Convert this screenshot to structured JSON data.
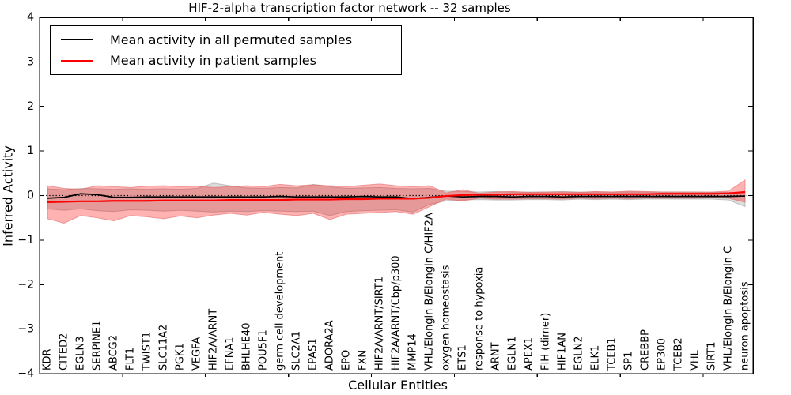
{
  "chart_data": {
    "type": "line",
    "title": "HIF-2-alpha transcription factor network -- 32 samples",
    "xlabel": "Cellular Entities",
    "ylabel": "Inferred Activity",
    "ylim": [
      -4,
      4
    ],
    "yticks": [
      4,
      3,
      2,
      1,
      0,
      -1,
      -2,
      -3,
      -4
    ],
    "x_major_ticks": [
      5,
      10,
      15,
      20,
      25,
      30,
      35,
      40
    ],
    "grid": false,
    "zero_line": "dotted",
    "legend_position": "upper left",
    "categories": [
      "KDR",
      "CITED2",
      "EGLN3",
      "SERPINE1",
      "ABCG2",
      "FLT1",
      "TWIST1",
      "SLC11A2",
      "PGK1",
      "VEGFA",
      "HIF2A/ARNT",
      "EFNA1",
      "BHLHE40",
      "POU5F1",
      "germ cell development",
      "SLC2A1",
      "EPAS1",
      "ADORA2A",
      "EPO",
      "FXN",
      "HIF2A/ARNT/SIRT1",
      "HIF2A/ARNT/Cbp/p300",
      "MMP14",
      "VHL/Elongin B/Elongin C/HIF2A",
      "oxygen homeostasis",
      "ETS1",
      "response to hypoxia",
      "ARNT",
      "EGLN1",
      "APEX1",
      "FIH (dimer)",
      "HIF1AN",
      "EGLN2",
      "ELK1",
      "TCEB1",
      "SP1",
      "CREBBP",
      "EP300",
      "TCEB2",
      "VHL",
      "SIRT1",
      "VHL/Elongin B/Elongin C",
      "neuron apoptosis"
    ],
    "series": [
      {
        "id": "permuted",
        "name": "Mean activity in all permuted samples",
        "color": "#000000",
        "line_width": 1.7,
        "band_color": "#808080",
        "band_opacity": 0.28,
        "band_edge": "#9a9a9a",
        "values": [
          -0.06,
          -0.04,
          0.04,
          0.02,
          -0.04,
          -0.04,
          -0.03,
          -0.03,
          -0.03,
          -0.03,
          -0.03,
          -0.03,
          -0.03,
          -0.03,
          -0.02,
          -0.03,
          -0.03,
          -0.03,
          -0.03,
          -0.02,
          -0.03,
          -0.03,
          -0.07,
          -0.04,
          -0.01,
          -0.03,
          -0.02,
          -0.02,
          -0.03,
          -0.02,
          -0.02,
          -0.03,
          -0.02,
          -0.02,
          -0.02,
          -0.02,
          -0.02,
          -0.02,
          -0.02,
          -0.02,
          -0.02,
          -0.02,
          -0.01
        ],
        "band_upper": [
          0.15,
          0.13,
          0.16,
          0.15,
          0.14,
          0.15,
          0.14,
          0.15,
          0.14,
          0.16,
          0.28,
          0.22,
          0.17,
          0.16,
          0.18,
          0.17,
          0.25,
          0.2,
          0.16,
          0.17,
          0.18,
          0.16,
          0.15,
          0.16,
          0.1,
          0.09,
          0.08,
          0.09,
          0.08,
          0.08,
          0.08,
          0.09,
          0.08,
          0.08,
          0.08,
          0.08,
          0.08,
          0.08,
          0.08,
          0.08,
          0.07,
          0.07,
          0.06
        ],
        "band_lower": [
          -0.3,
          -0.33,
          -0.3,
          -0.34,
          -0.36,
          -0.32,
          -0.33,
          -0.35,
          -0.33,
          -0.35,
          -0.37,
          -0.35,
          -0.36,
          -0.34,
          -0.35,
          -0.36,
          -0.35,
          -0.45,
          -0.36,
          -0.34,
          -0.33,
          -0.32,
          -0.37,
          -0.2,
          -0.12,
          -0.1,
          -0.09,
          -0.1,
          -0.1,
          -0.09,
          -0.09,
          -0.1,
          -0.08,
          -0.09,
          -0.08,
          -0.09,
          -0.08,
          -0.08,
          -0.08,
          -0.08,
          -0.08,
          -0.1,
          -0.25
        ]
      },
      {
        "id": "patient",
        "name": "Mean activity in patient samples",
        "color": "#ff0000",
        "line_width": 2.2,
        "band_color": "#ff0000",
        "band_opacity": 0.3,
        "band_edge": "#e06060",
        "values": [
          -0.15,
          -0.14,
          -0.13,
          -0.13,
          -0.12,
          -0.12,
          -0.12,
          -0.11,
          -0.11,
          -0.11,
          -0.11,
          -0.1,
          -0.1,
          -0.1,
          -0.1,
          -0.09,
          -0.09,
          -0.09,
          -0.08,
          -0.08,
          -0.07,
          -0.07,
          -0.07,
          -0.05,
          -0.01,
          0.01,
          0.02,
          0.02,
          0.03,
          0.03,
          0.03,
          0.03,
          0.03,
          0.03,
          0.03,
          0.03,
          0.03,
          0.04,
          0.04,
          0.04,
          0.04,
          0.05,
          0.08
        ],
        "band_upper": [
          0.22,
          0.16,
          0.14,
          0.22,
          0.2,
          0.18,
          0.21,
          0.22,
          0.2,
          0.21,
          0.18,
          0.2,
          0.22,
          0.2,
          0.25,
          0.22,
          0.24,
          0.22,
          0.2,
          0.23,
          0.26,
          0.22,
          0.2,
          0.22,
          0.06,
          0.13,
          0.05,
          0.08,
          0.09,
          0.07,
          0.08,
          0.08,
          0.07,
          0.09,
          0.08,
          0.1,
          0.09,
          0.08,
          0.08,
          0.08,
          0.08,
          0.1,
          0.35
        ],
        "band_lower": [
          -0.52,
          -0.62,
          -0.45,
          -0.5,
          -0.57,
          -0.45,
          -0.48,
          -0.52,
          -0.46,
          -0.5,
          -0.44,
          -0.4,
          -0.44,
          -0.38,
          -0.42,
          -0.45,
          -0.4,
          -0.54,
          -0.42,
          -0.4,
          -0.38,
          -0.36,
          -0.42,
          -0.25,
          -0.08,
          -0.12,
          -0.06,
          -0.08,
          -0.08,
          -0.07,
          -0.07,
          -0.08,
          -0.06,
          -0.07,
          -0.06,
          -0.07,
          -0.06,
          -0.06,
          -0.06,
          -0.06,
          -0.05,
          -0.06,
          -0.15
        ]
      }
    ]
  }
}
